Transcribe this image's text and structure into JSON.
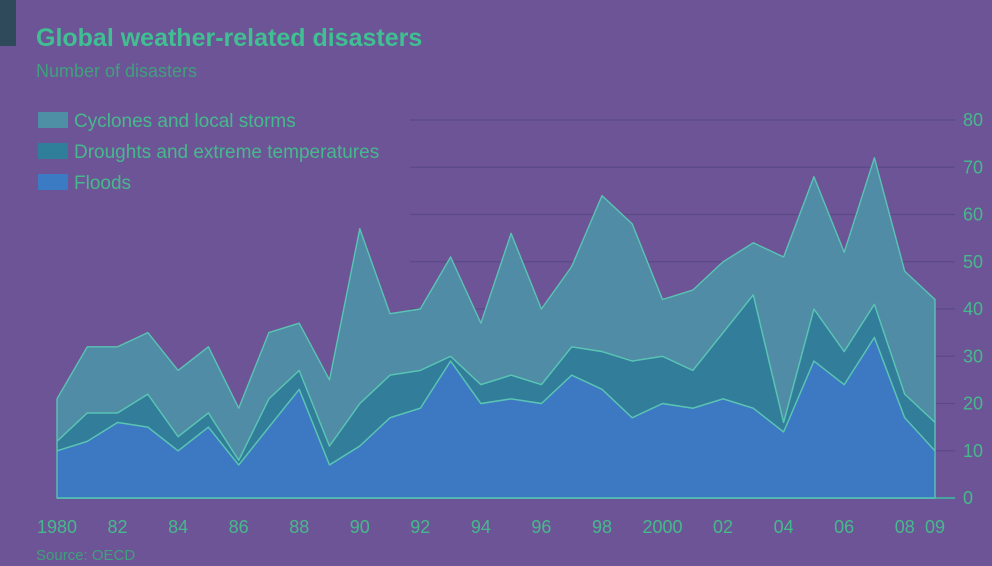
{
  "chart_data": {
    "type": "area",
    "stacked": true,
    "title": "Global weather-related disasters",
    "subtitle": "Number of disasters",
    "source": "Source: OECD",
    "x": [
      1980,
      1981,
      1982,
      1983,
      1984,
      1985,
      1986,
      1987,
      1988,
      1989,
      1990,
      1991,
      1992,
      1993,
      1994,
      1995,
      1996,
      1997,
      1998,
      1999,
      2000,
      2001,
      2002,
      2003,
      2004,
      2005,
      2006,
      2007,
      2008,
      2009
    ],
    "x_tick_values": [
      1980,
      1982,
      1984,
      1986,
      1988,
      1990,
      1992,
      1994,
      1996,
      1998,
      2000,
      2002,
      2004,
      2006,
      2008,
      2009
    ],
    "x_tick_labels": [
      "1980",
      "82",
      "84",
      "86",
      "88",
      "90",
      "92",
      "94",
      "96",
      "98",
      "2000",
      "02",
      "04",
      "06",
      "08",
      "09"
    ],
    "ylim": [
      0,
      80
    ],
    "y_ticks": [
      0,
      10,
      20,
      30,
      40,
      50,
      60,
      70,
      80
    ],
    "y_tick_labels": [
      "0",
      "10",
      "20",
      "30",
      "40",
      "50",
      "60",
      "70",
      "80"
    ],
    "y_axis_side": "right",
    "grid": true,
    "legend_position": "top-left",
    "series": [
      {
        "name": "Floods",
        "color": "#3b7bc4",
        "values": [
          10,
          12,
          16,
          15,
          10,
          15,
          7,
          15,
          23,
          7,
          11,
          17,
          19,
          29,
          20,
          21,
          20,
          26,
          23,
          17,
          20,
          19,
          21,
          19,
          14,
          29,
          24,
          34,
          17,
          10
        ]
      },
      {
        "name": "Droughts and extreme temperatures",
        "color": "#2f7f9a",
        "values": [
          2,
          6,
          2,
          7,
          3,
          3,
          1,
          6,
          4,
          4,
          9,
          9,
          8,
          1,
          4,
          5,
          4,
          6,
          8,
          12,
          10,
          8,
          14,
          24,
          2,
          11,
          7,
          7,
          5,
          6
        ]
      },
      {
        "name": "Cyclones and local storms",
        "color": "#4f8fa6",
        "values": [
          9,
          14,
          14,
          13,
          14,
          14,
          11,
          14,
          10,
          14,
          37,
          13,
          13,
          21,
          13,
          30,
          16,
          17,
          33,
          29,
          12,
          17,
          15,
          11,
          35,
          28,
          21,
          31,
          26,
          26
        ]
      }
    ],
    "legend_order": [
      "Cyclones and local storms",
      "Droughts and extreme temperatures",
      "Floods"
    ],
    "legend_colors": [
      "#4f8fa6",
      "#2f7f9a",
      "#3b7bc4"
    ]
  },
  "colors": {
    "background": "#6d5496",
    "title": "#3fbf92",
    "subtitle": "#3fa07c",
    "text": "#46b98c",
    "grid": "#5a4a86",
    "axis": "#49a4a0",
    "area_stroke": "#59c4b4"
  }
}
